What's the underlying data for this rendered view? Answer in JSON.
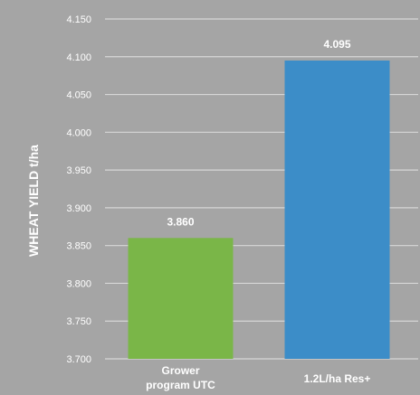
{
  "chart_data": {
    "type": "bar",
    "title": "",
    "xlabel": "",
    "ylabel": "WHEAT YIELD t/ha",
    "ylim": [
      3.7,
      4.15
    ],
    "y_ticks": [
      "3.700",
      "3.750",
      "3.800",
      "3.850",
      "3.900",
      "3.950",
      "4.000",
      "4.050",
      "4.100",
      "4.150"
    ],
    "y_tick_values": [
      3.7,
      3.75,
      3.8,
      3.85,
      3.9,
      3.95,
      4.0,
      4.05,
      4.1,
      4.15
    ],
    "grid": true,
    "categories": [
      [
        "Grower",
        "program UTC"
      ],
      [
        "1.2L/ha Res+"
      ]
    ],
    "values": [
      3.86,
      4.095
    ],
    "value_labels": [
      "3.860",
      "4.095"
    ],
    "colors": [
      "#7ab648",
      "#3c8dc8"
    ],
    "background": "#a5a5a5"
  }
}
